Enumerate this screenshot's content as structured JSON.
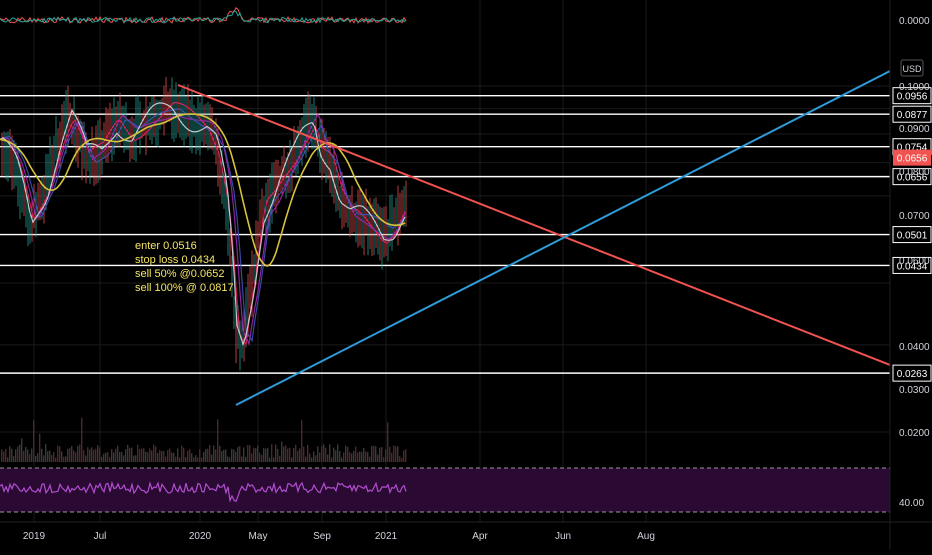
{
  "chart_data": [
    {
      "type": "line",
      "panel": "oscillator-top",
      "axis_labels": [
        "0.0000"
      ]
    },
    {
      "type": "line",
      "panel": "price",
      "currency": "USD",
      "xaxis_labels": [
        "2019",
        "Jul",
        "2020",
        "May",
        "Sep",
        "2021",
        "Apr",
        "Jun",
        "Aug"
      ],
      "yaxis": {
        "scale": "log",
        "ticks": [
          "0.1000",
          "0.0900",
          "0.0800",
          "0.0700",
          "0.0600",
          "0.0400",
          "0.0300",
          "0.0200"
        ],
        "ylim": [
          0.0175,
          0.11
        ]
      },
      "horizontal_levels": [
        {
          "value": 0.0956,
          "label": "0.0956"
        },
        {
          "value": 0.0877,
          "label": "0.0877"
        },
        {
          "value": 0.0754,
          "label": "0.0754"
        },
        {
          "value": 0.0656,
          "label": "0.0656"
        },
        {
          "value": 0.0501,
          "label": "0.0501"
        },
        {
          "value": 0.0434,
          "label": "0.0434"
        },
        {
          "value": 0.0263,
          "label": "0.0263"
        }
      ],
      "last_price": {
        "value": 0.0656,
        "label": "0.0656",
        "color": "#f05350"
      },
      "trendlines": [
        {
          "color": "#f05350",
          "role": "descending-resistance"
        },
        {
          "color": "#2f9bd8",
          "role": "ascending-support"
        }
      ],
      "annotation": [
        "enter 0.0516",
        "stop loss 0.0434",
        "sell 50% @0.0652",
        "sell 100% @ 0.0817"
      ],
      "annotation_color": "#f5e663",
      "grid": true
    },
    {
      "type": "line",
      "panel": "rsi-bottom",
      "axis_labels": [
        "40.00"
      ],
      "band_color": "#2a0a33",
      "series_color": "#b24ed0"
    }
  ],
  "colors": {
    "background": "#000000",
    "grid": "#1a1a1a",
    "level_line": "#ffffff",
    "axis_text": "#d1d4dc",
    "volume": "#3a3a3a"
  }
}
